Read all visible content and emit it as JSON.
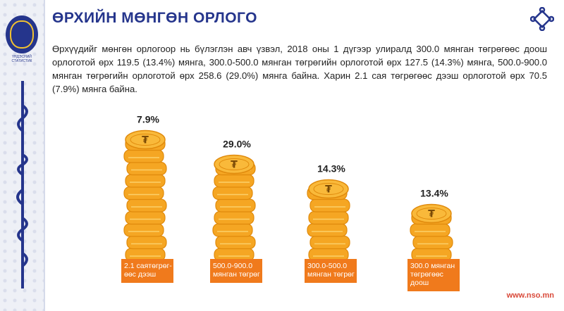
{
  "header": {
    "title": "ӨРХИЙН МӨНГӨН ОРЛОГО"
  },
  "intro_text": "Өрхүүдийг мөнгөн орлогоор нь бүлэглэн авч үзвэл, 2018 оны 1 дүгээр улиралд 300.0 мянган төгрөгөөс доош орлоготой өрх 119.5 (13.4%) мянга, 300.0-500.0 мянган төгрөгийн орлоготой өрх 127.5 (14.3%) мянга, 500.0-900.0 мянган төгрөгийн орлоготой өрх 258.6 (29.0%) мянга байна. Харин 2.1 сая төгрөгөөс дээш орлоготой өрх 70.5 (7.9%) мянга байна.",
  "sidebar": {
    "logo_text": "ҮНДЭСНИЙ СТАТИСТИК",
    "logo_icon": "nso-emblem-icon",
    "script_icon": "mongolian-script-icon"
  },
  "corner_icon": "endless-knot-icon",
  "footer": {
    "url": "www.nso.mn"
  },
  "colors": {
    "title": "#25358c",
    "coin": "#f5a623",
    "coin_edge": "#e08a0c",
    "label_bg": "#f07a1c",
    "footer": "#d94a3a"
  },
  "chart_data": {
    "type": "bar",
    "style": "coin-stacks",
    "categories": [
      "2.1 саятөгрөг-өөс дээш",
      "500.0-900.0 мянган төгрөг",
      "300.0-500.0 мянган төгрөг",
      "300.0 мянган төгрөгөөс доош"
    ],
    "category_lines": [
      [
        "2.1 саятөгрөг-",
        "өөс дээш"
      ],
      [
        "500.0-900.0",
        "мянган төгрөг"
      ],
      [
        "300.0-500.0",
        "мянган төгрөг"
      ],
      [
        "300.0 мянган",
        "төгрөгөөс",
        "доош"
      ]
    ],
    "values": [
      7.9,
      29.0,
      14.3,
      13.4
    ],
    "value_labels": [
      "7.9%",
      "29.0%",
      "14.3%",
      "13.4%"
    ],
    "coin_counts": [
      10,
      8,
      6,
      4
    ],
    "coin_symbol": "₮"
  }
}
